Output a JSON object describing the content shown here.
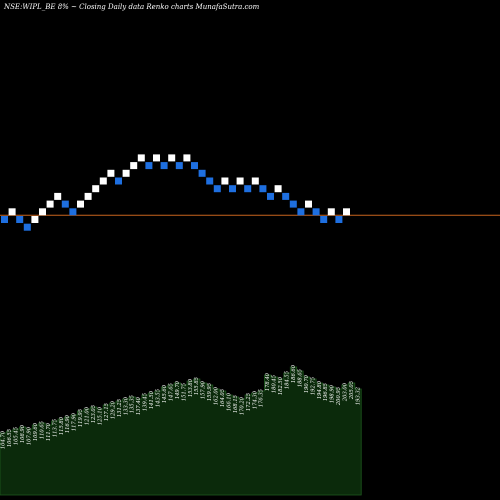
{
  "header": {
    "symbol": "NSE:WIPL_BE",
    "change": "8%",
    "arrow": "~",
    "closing_label": "Closing",
    "chart_title": "Daily data Renko charts MunafaSutra.com"
  },
  "colors": {
    "background": "#000000",
    "up_brick": "#ffffff",
    "down_brick": "#1e6fe0",
    "reference_line": "#c8641e",
    "volume_fill": "#0b2a0b",
    "volume_line": "#1f5a1f"
  },
  "chart_data": {
    "type": "renko",
    "bricks": [
      {
        "dir": "down",
        "level": 0
      },
      {
        "dir": "up",
        "level": 1
      },
      {
        "dir": "down",
        "level": 0
      },
      {
        "dir": "down",
        "level": -1
      },
      {
        "dir": "up",
        "level": 0
      },
      {
        "dir": "up",
        "level": 1
      },
      {
        "dir": "up",
        "level": 2
      },
      {
        "dir": "up",
        "level": 3
      },
      {
        "dir": "down",
        "level": 2
      },
      {
        "dir": "down",
        "level": 1
      },
      {
        "dir": "up",
        "level": 2
      },
      {
        "dir": "up",
        "level": 3
      },
      {
        "dir": "up",
        "level": 4
      },
      {
        "dir": "up",
        "level": 5
      },
      {
        "dir": "up",
        "level": 6
      },
      {
        "dir": "down",
        "level": 5
      },
      {
        "dir": "up",
        "level": 6
      },
      {
        "dir": "up",
        "level": 7
      },
      {
        "dir": "up",
        "level": 8
      },
      {
        "dir": "down",
        "level": 7
      },
      {
        "dir": "up",
        "level": 8
      },
      {
        "dir": "down",
        "level": 7
      },
      {
        "dir": "up",
        "level": 8
      },
      {
        "dir": "down",
        "level": 7
      },
      {
        "dir": "up",
        "level": 8
      },
      {
        "dir": "down",
        "level": 7
      },
      {
        "dir": "down",
        "level": 6
      },
      {
        "dir": "down",
        "level": 5
      },
      {
        "dir": "down",
        "level": 4
      },
      {
        "dir": "up",
        "level": 5
      },
      {
        "dir": "down",
        "level": 4
      },
      {
        "dir": "up",
        "level": 5
      },
      {
        "dir": "down",
        "level": 4
      },
      {
        "dir": "up",
        "level": 5
      },
      {
        "dir": "down",
        "level": 4
      },
      {
        "dir": "down",
        "level": 3
      },
      {
        "dir": "up",
        "level": 4
      },
      {
        "dir": "down",
        "level": 3
      },
      {
        "dir": "down",
        "level": 2
      },
      {
        "dir": "down",
        "level": 1
      },
      {
        "dir": "up",
        "level": 2
      },
      {
        "dir": "down",
        "level": 1
      },
      {
        "dir": "down",
        "level": 0
      },
      {
        "dir": "up",
        "level": 1
      },
      {
        "dir": "down",
        "level": 0
      },
      {
        "dir": "up",
        "level": 1
      }
    ],
    "reference_level": 1,
    "volume": [
      62,
      64,
      66,
      68,
      66,
      70,
      72,
      70,
      74,
      76,
      78,
      80,
      84,
      86,
      88,
      86,
      90,
      92,
      94,
      96,
      98,
      96,
      100,
      102,
      104,
      108,
      110,
      112,
      110,
      114,
      116,
      112,
      110,
      106,
      104,
      100,
      98,
      96,
      100,
      102,
      104,
      120,
      118,
      116,
      122,
      128,
      124,
      118,
      116,
      112,
      110,
      108,
      106,
      110,
      112,
      106
    ],
    "value_labels": [
      "104.70",
      "106.55",
      "105.45",
      "108.90",
      "107.90",
      "109.60",
      "110.65",
      "111.70",
      "113.75",
      "115.80",
      "116.90",
      "117.90",
      "119.95",
      "121.00",
      "123.05",
      "125.10",
      "127.15",
      "129.20",
      "131.25",
      "133.30",
      "135.35",
      "137.40",
      "139.45",
      "141.50",
      "143.55",
      "145.60",
      "147.65",
      "149.70",
      "151.75",
      "153.80",
      "155.85",
      "157.90",
      "159.95",
      "162.00",
      "164.05",
      "166.10",
      "168.15",
      "170.20",
      "172.25",
      "174.30",
      "176.35",
      "178.40",
      "180.45",
      "182.50",
      "184.55",
      "186.60",
      "188.65",
      "190.70",
      "192.75",
      "194.80",
      "196.85",
      "198.90",
      "200.95",
      "203.00",
      "205.05",
      "193.32"
    ]
  }
}
